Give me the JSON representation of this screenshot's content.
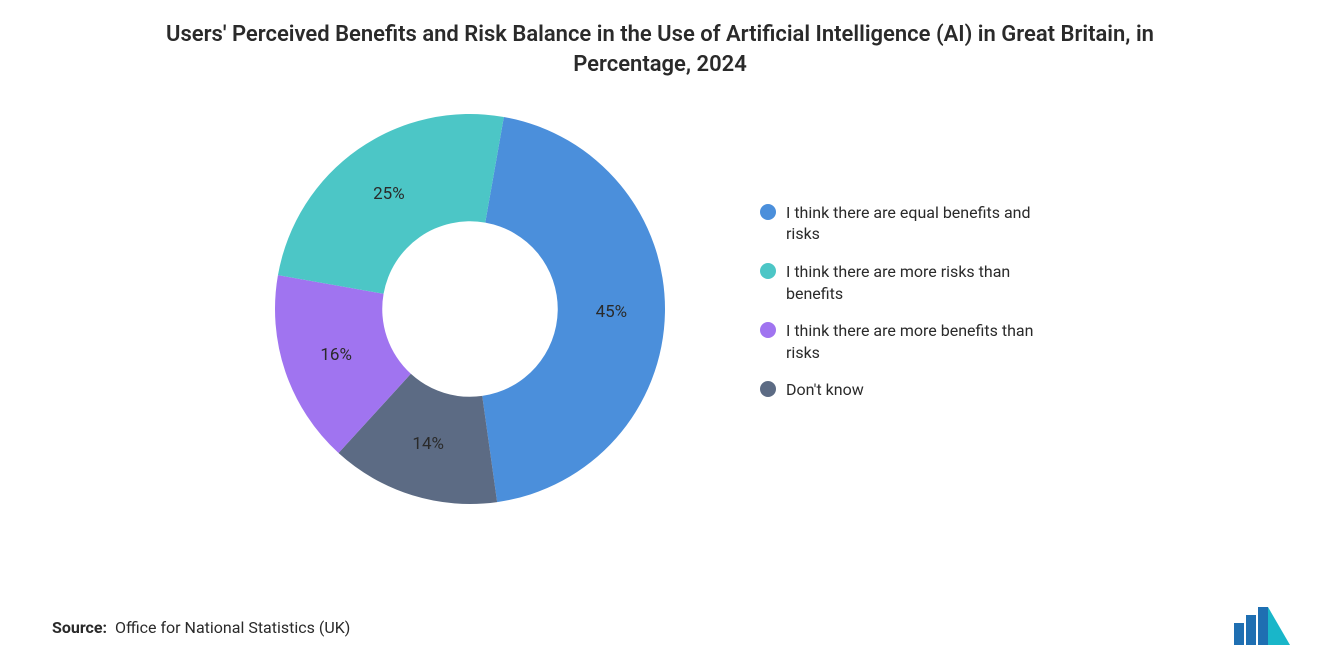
{
  "title": "Users' Perceived Benefits and Risk Balance in the Use of Artificial Intelligence (AI) in Great Britain, in Percentage, 2024",
  "source_label": "Source:",
  "source_value": "Office for National Statistics (UK)",
  "chart": {
    "type": "donut",
    "inner_radius_ratio": 0.45,
    "start_angle_deg": -80,
    "background_color": "#ffffff",
    "title_fontsize": 22,
    "title_color": "#2a2a2a",
    "label_fontsize": 17,
    "label_color": "#2a2a2a",
    "legend_fontsize": 16,
    "slices": [
      {
        "label": "I think there are equal benefits and risks",
        "value": 45,
        "display": "45%",
        "color": "#4b8fdb"
      },
      {
        "label": "Don't know",
        "value": 14,
        "display": "14%",
        "color": "#5c6b84"
      },
      {
        "label": "I think there are more benefits than risks",
        "value": 16,
        "display": "16%",
        "color": "#a074f0"
      },
      {
        "label": "I think there are more risks than benefits",
        "value": 25,
        "display": "25%",
        "color": "#4cc6c6"
      }
    ],
    "legend_order": [
      0,
      3,
      2,
      1
    ]
  },
  "logo": {
    "bar_color": "#1f6fb2",
    "accent_color": "#19b6c9"
  }
}
